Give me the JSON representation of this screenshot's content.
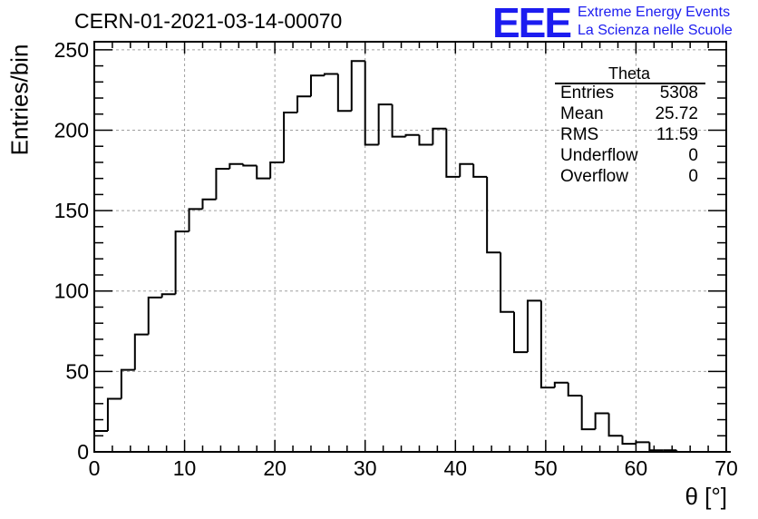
{
  "header": {
    "run_title": "CERN-01-2021-03-14-00070",
    "logo_text": "EEE",
    "logo_line1": "Extreme Energy Events",
    "logo_line2": "La Scienza nelle Scuole",
    "logo_color": "#1c1cf0"
  },
  "stats_box": {
    "title": "Theta",
    "rows": [
      {
        "key": "Entries",
        "value": "5308"
      },
      {
        "key": "Mean",
        "value": "25.72"
      },
      {
        "key": "RMS",
        "value": "11.59"
      },
      {
        "key": "Underflow",
        "value": "0"
      },
      {
        "key": "Overflow",
        "value": "0"
      }
    ]
  },
  "chart_data": {
    "type": "bar",
    "histogram": true,
    "xlabel": "θ [°]",
    "ylabel": "Entries/bin",
    "xlim": [
      0,
      70
    ],
    "ylim": [
      0,
      255
    ],
    "xticks": [
      "0",
      "10",
      "20",
      "30",
      "40",
      "50",
      "60",
      "70"
    ],
    "yticks": [
      "0",
      "50",
      "100",
      "150",
      "200",
      "250"
    ],
    "grid": true,
    "bin_width": 1.5,
    "bin_start": 0,
    "values": [
      13,
      33,
      51,
      73,
      96,
      98,
      137,
      151,
      157,
      176,
      179,
      178,
      170,
      180,
      211,
      221,
      234,
      235,
      212,
      243,
      191,
      216,
      196,
      197,
      191,
      201,
      171,
      179,
      171,
      124,
      87,
      62,
      94,
      40,
      43,
      35,
      14,
      24,
      10,
      5,
      6,
      1,
      1,
      0,
      0,
      0,
      0
    ]
  }
}
